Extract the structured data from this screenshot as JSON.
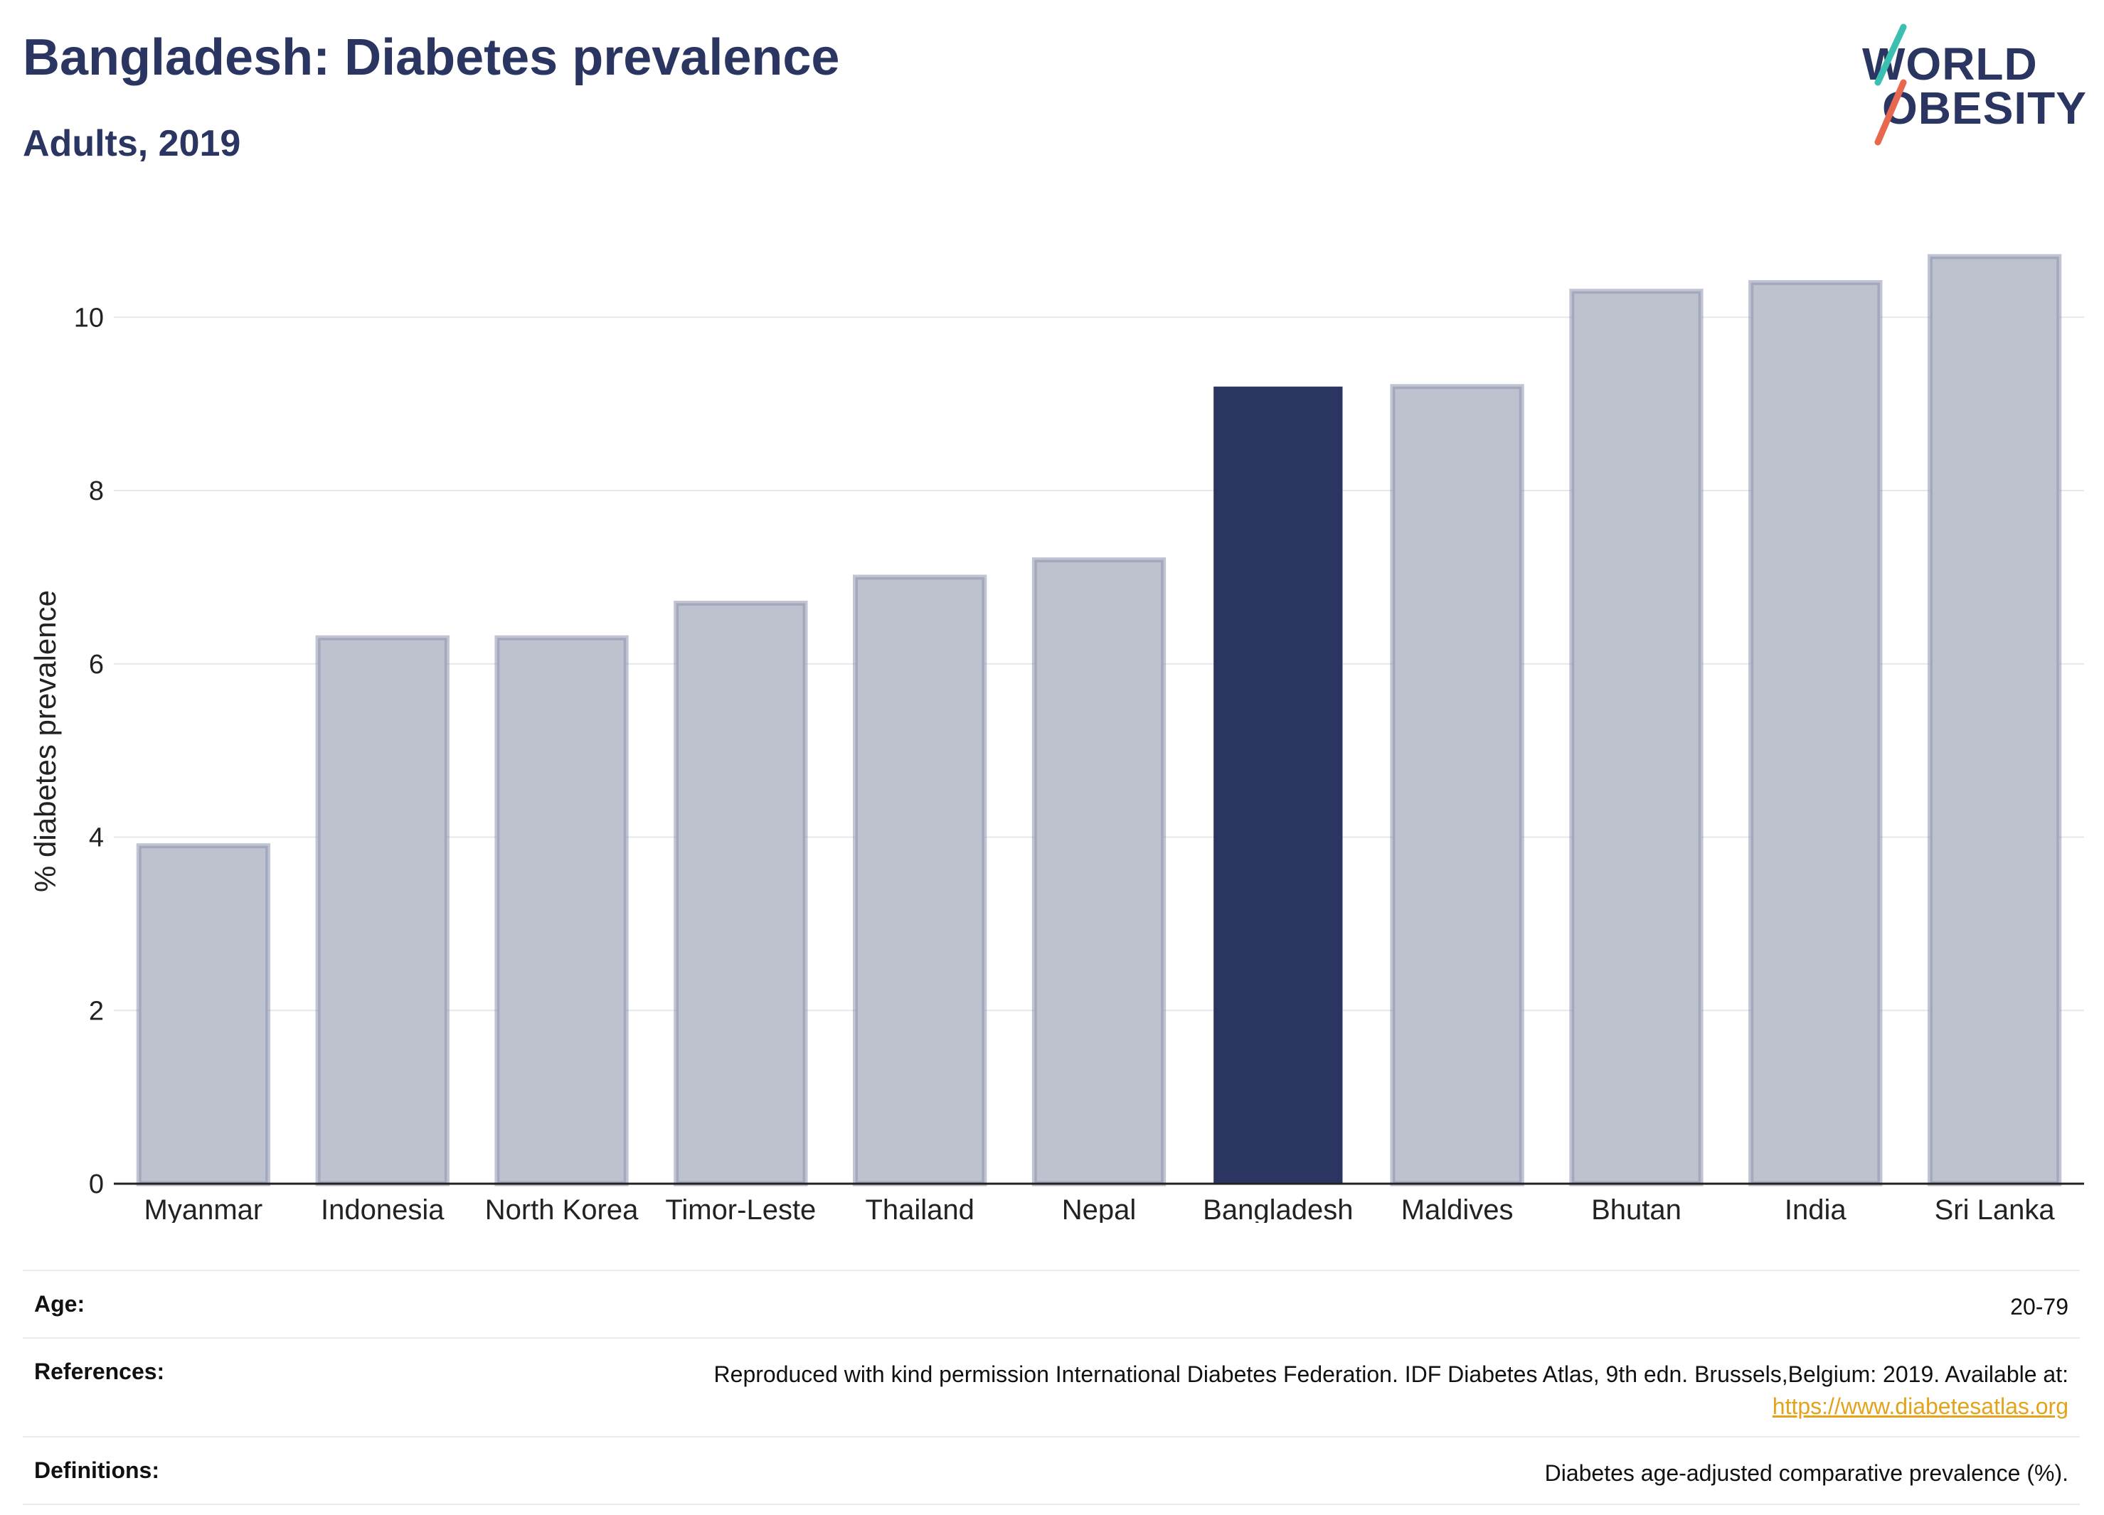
{
  "header": {
    "title": "Bangladesh: Diabetes prevalence",
    "subtitle": "Adults, 2019"
  },
  "logo": {
    "line1": "WORLD",
    "line2": "OBESITY",
    "slash_colors": [
      "#3bbfb1",
      "#e8674f"
    ]
  },
  "chart_data": {
    "type": "bar",
    "categories": [
      "Myanmar",
      "Indonesia",
      "North Korea",
      "Timor-Leste",
      "Thailand",
      "Nepal",
      "Bangladesh",
      "Maldives",
      "Bhutan",
      "India",
      "Sri Lanka"
    ],
    "values": [
      3.9,
      6.3,
      6.3,
      6.7,
      7.0,
      7.2,
      9.2,
      9.2,
      10.3,
      10.4,
      10.7
    ],
    "highlight": "Bangladesh",
    "title": "Bangladesh: Diabetes prevalence",
    "subtitle": "Adults, 2019",
    "xlabel": "",
    "ylabel": "% diabetes prevalence",
    "ylim": [
      0,
      11.2
    ],
    "yticks": [
      0,
      2,
      4,
      6,
      8,
      10
    ],
    "grid": true,
    "colors": {
      "bar": "#bec2cf",
      "bar_edge": "#8e93ad",
      "highlight": "#2a3561",
      "axis": "#222222",
      "grid": "#e5e7eb"
    }
  },
  "meta": {
    "age_label": "Age:",
    "age_value": "20-79",
    "references_label": "References:",
    "references_value": "Reproduced with kind permission International Diabetes Federation. IDF Diabetes Atlas, 9th edn. Brussels,Belgium: 2019. Available at:",
    "references_link": "https://www.diabetesatlas.org",
    "definitions_label": "Definitions:",
    "definitions_value": "Diabetes age-adjusted comparative prevalence (%)."
  }
}
